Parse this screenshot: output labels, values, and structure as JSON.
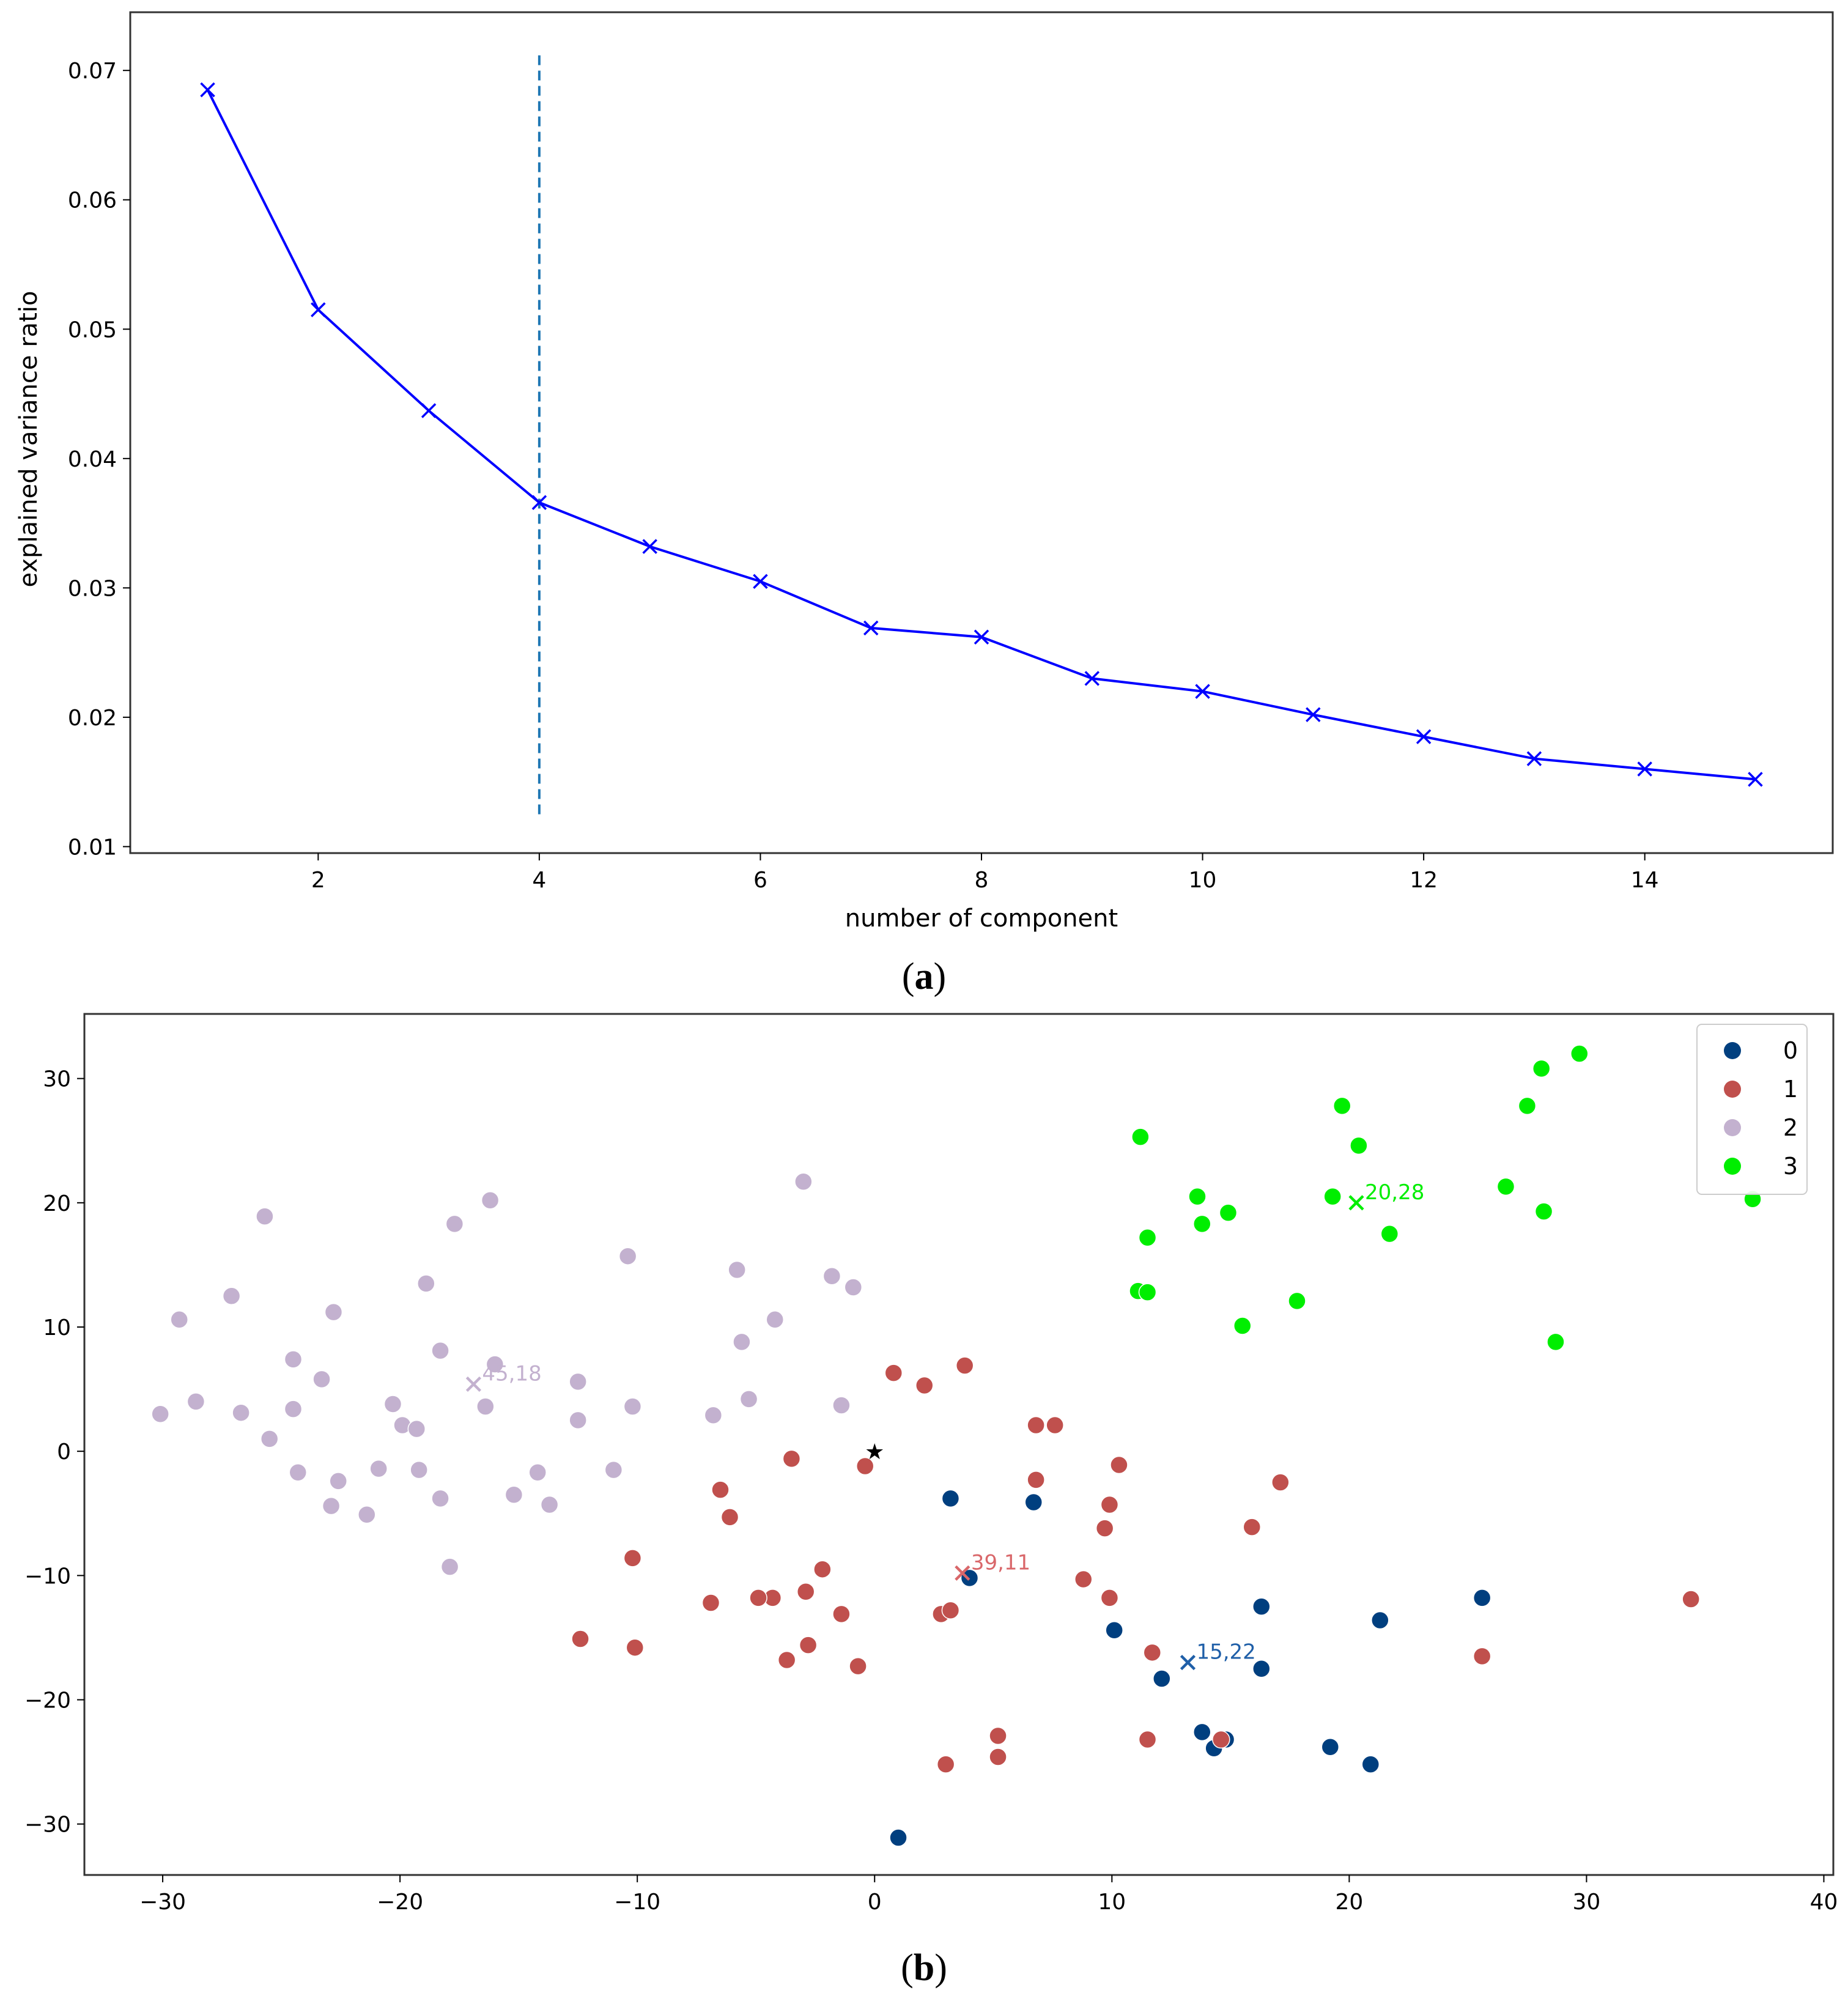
{
  "chart_data": [
    {
      "panel": "a",
      "type": "line",
      "caption": {
        "open": "(",
        "letter": "a",
        "close": ")"
      },
      "xlabel": "number of component",
      "ylabel": "explained variance ratio",
      "xlim": [
        0.3,
        15.7
      ],
      "ylim": [
        0.0095,
        0.0745
      ],
      "xticks": [
        2,
        4,
        6,
        8,
        10,
        12,
        14
      ],
      "xtick_labels": [
        "2",
        "4",
        "6",
        "8",
        "10",
        "12",
        "14"
      ],
      "yticks": [
        0.01,
        0.02,
        0.03,
        0.04,
        0.05,
        0.06,
        0.07
      ],
      "ytick_labels": [
        "0.01",
        "0.02",
        "0.03",
        "0.04",
        "0.05",
        "0.06",
        "0.07"
      ],
      "series": [
        {
          "name": "explained variance ratio",
          "color": "#0000ff",
          "marker": "x",
          "x": [
            1,
            2,
            3,
            4,
            5,
            6,
            7,
            8,
            9,
            10,
            11,
            12,
            13,
            14,
            15
          ],
          "y": [
            0.0685,
            0.0515,
            0.0437,
            0.0366,
            0.0332,
            0.0305,
            0.0269,
            0.0262,
            0.023,
            0.022,
            0.0202,
            0.0185,
            0.0168,
            0.016,
            0.0152
          ]
        }
      ],
      "vline": {
        "x": 4,
        "y_from": 0.0125,
        "y_to": 0.0713,
        "color": "#1f77b4",
        "style": "dashed"
      }
    },
    {
      "panel": "b",
      "type": "scatter",
      "caption": {
        "open": "(",
        "letter": "b",
        "close": ")"
      },
      "xlim": [
        -33.3,
        40.4
      ],
      "ylim": [
        -34.1,
        35.2
      ],
      "xticks": [
        -30,
        -20,
        -10,
        0,
        10,
        20,
        30,
        40
      ],
      "xtick_labels": [
        "−30",
        "−20",
        "−10",
        "0",
        "10",
        "20",
        "30",
        "40"
      ],
      "yticks": [
        -30,
        -20,
        -10,
        0,
        10,
        20,
        30
      ],
      "ytick_labels": [
        "−30",
        "−20",
        "−10",
        "0",
        "10",
        "20",
        "30"
      ],
      "legend": {
        "position": "top-right",
        "entries": [
          "0",
          "1",
          "2",
          "3"
        ]
      },
      "series": [
        {
          "name": "0",
          "color": "#003f7f",
          "points": [
            [
              3.2,
              -3.8
            ],
            [
              4.0,
              -10.2
            ],
            [
              6.7,
              -4.1
            ],
            [
              10.1,
              -14.4
            ],
            [
              12.1,
              -18.3
            ],
            [
              13.8,
              -22.6
            ],
            [
              14.3,
              -23.9
            ],
            [
              14.8,
              -23.2
            ],
            [
              16.3,
              -12.5
            ],
            [
              16.3,
              -17.5
            ],
            [
              19.2,
              -23.8
            ],
            [
              20.9,
              -25.2
            ],
            [
              21.3,
              -13.6
            ],
            [
              25.6,
              -11.8
            ],
            [
              1.0,
              -31.1
            ]
          ]
        },
        {
          "name": "1",
          "color": "#c0504d",
          "points": [
            [
              0.8,
              6.3
            ],
            [
              2.1,
              5.3
            ],
            [
              3.8,
              6.9
            ],
            [
              6.8,
              2.1
            ],
            [
              7.6,
              2.1
            ],
            [
              10.3,
              -1.1
            ],
            [
              6.8,
              -2.3
            ],
            [
              9.9,
              -4.3
            ],
            [
              9.7,
              -6.2
            ],
            [
              17.1,
              -2.5
            ],
            [
              15.9,
              -6.1
            ],
            [
              -0.4,
              -1.2
            ],
            [
              -3.5,
              -0.6
            ],
            [
              -6.5,
              -3.1
            ],
            [
              -6.1,
              -5.3
            ],
            [
              -2.2,
              -9.5
            ],
            [
              -2.9,
              -11.3
            ],
            [
              -4.3,
              -11.8
            ],
            [
              -4.9,
              -11.8
            ],
            [
              -6.9,
              -12.2
            ],
            [
              -1.4,
              -13.1
            ],
            [
              2.8,
              -13.1
            ],
            [
              3.2,
              -12.8
            ],
            [
              8.8,
              -10.3
            ],
            [
              9.9,
              -11.8
            ],
            [
              11.7,
              -16.2
            ],
            [
              -12.4,
              -15.1
            ],
            [
              -10.1,
              -15.8
            ],
            [
              -3.7,
              -16.8
            ],
            [
              -2.8,
              -15.6
            ],
            [
              -0.7,
              -17.3
            ],
            [
              5.2,
              -22.9
            ],
            [
              5.2,
              -24.6
            ],
            [
              3.0,
              -25.2
            ],
            [
              11.5,
              -23.2
            ],
            [
              14.6,
              -23.2
            ],
            [
              25.6,
              -16.5
            ],
            [
              34.4,
              -11.9
            ],
            [
              -10.2,
              -8.6
            ]
          ]
        },
        {
          "name": "2",
          "color": "#c3b1cf",
          "points": [
            [
              -30.1,
              3.0
            ],
            [
              -29.3,
              10.6
            ],
            [
              -28.6,
              4.0
            ],
            [
              -27.1,
              12.5
            ],
            [
              -26.7,
              3.1
            ],
            [
              -25.7,
              18.9
            ],
            [
              -25.5,
              1.0
            ],
            [
              -24.5,
              7.4
            ],
            [
              -24.5,
              3.4
            ],
            [
              -24.3,
              -1.7
            ],
            [
              -23.3,
              5.8
            ],
            [
              -22.8,
              11.2
            ],
            [
              -22.9,
              -4.4
            ],
            [
              -22.6,
              -2.4
            ],
            [
              -21.4,
              -5.1
            ],
            [
              -20.9,
              -1.4
            ],
            [
              -20.3,
              3.8
            ],
            [
              -19.9,
              2.1
            ],
            [
              -19.3,
              1.8
            ],
            [
              -19.2,
              -1.5
            ],
            [
              -18.9,
              13.5
            ],
            [
              -18.3,
              8.1
            ],
            [
              -18.3,
              -3.8
            ],
            [
              -17.9,
              -9.3
            ],
            [
              -17.7,
              18.3
            ],
            [
              -16.4,
              3.6
            ],
            [
              -16.2,
              20.2
            ],
            [
              -16.0,
              7.0
            ],
            [
              -15.2,
              -3.5
            ],
            [
              -14.2,
              -1.7
            ],
            [
              -13.7,
              -4.3
            ],
            [
              -12.5,
              5.6
            ],
            [
              -12.5,
              2.5
            ],
            [
              -11.0,
              -1.5
            ],
            [
              -10.4,
              15.7
            ],
            [
              -10.2,
              3.6
            ],
            [
              -6.8,
              2.9
            ],
            [
              -5.8,
              14.6
            ],
            [
              -5.6,
              8.8
            ],
            [
              -5.3,
              4.2
            ],
            [
              -4.2,
              10.6
            ],
            [
              -3.0,
              21.7
            ],
            [
              -1.8,
              14.1
            ],
            [
              -1.4,
              3.7
            ],
            [
              -0.9,
              13.2
            ]
          ]
        },
        {
          "name": "3",
          "color": "#00ee00",
          "points": [
            [
              11.2,
              25.3
            ],
            [
              13.6,
              20.5
            ],
            [
              13.8,
              18.3
            ],
            [
              11.5,
              17.2
            ],
            [
              14.9,
              19.2
            ],
            [
              11.1,
              12.9
            ],
            [
              11.5,
              12.8
            ],
            [
              15.5,
              10.1
            ],
            [
              17.8,
              12.1
            ],
            [
              19.7,
              27.8
            ],
            [
              19.3,
              20.5
            ],
            [
              20.4,
              24.6
            ],
            [
              21.7,
              17.5
            ],
            [
              26.6,
              21.3
            ],
            [
              27.5,
              27.8
            ],
            [
              28.1,
              30.8
            ],
            [
              28.2,
              19.3
            ],
            [
              28.7,
              8.8
            ],
            [
              29.7,
              32.0
            ],
            [
              37.0,
              20.3
            ]
          ]
        }
      ],
      "centroids": [
        {
          "cluster": "0",
          "x": 13.2,
          "y": -17.0,
          "label": "15,22",
          "color": "#1f5fa8"
        },
        {
          "cluster": "1",
          "x": 3.7,
          "y": -9.8,
          "label": "39,11",
          "color": "#d9676a"
        },
        {
          "cluster": "2",
          "x": -16.9,
          "y": 5.4,
          "label": "45,18",
          "color": "#c3b1cf"
        },
        {
          "cluster": "3",
          "x": 20.3,
          "y": 20.0,
          "label": "20,28",
          "color": "#00ee00"
        }
      ],
      "origin_marker": {
        "x": 0,
        "y": 0,
        "symbol": "★"
      }
    }
  ]
}
